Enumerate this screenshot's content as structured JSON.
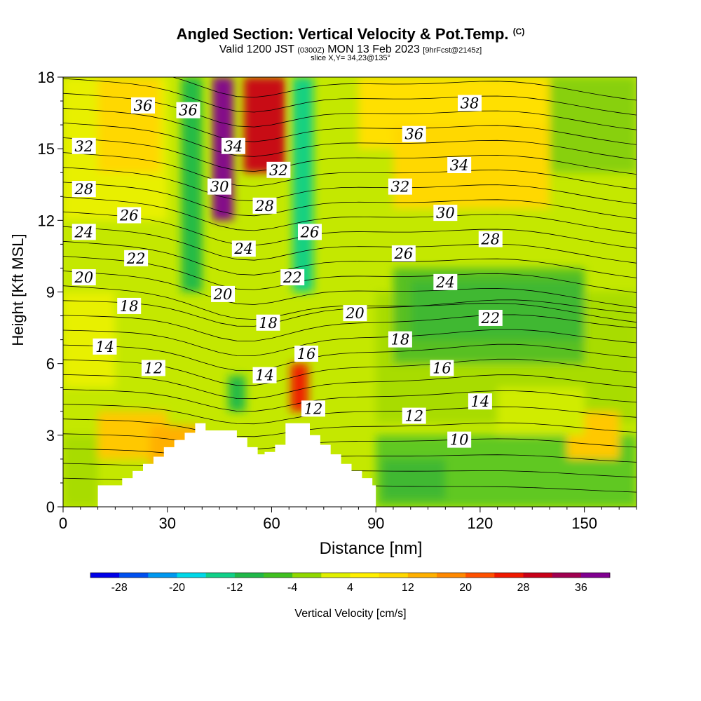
{
  "header": {
    "title": "Angled Section: Vertical Velocity & Pot.Temp.",
    "title_mark": "(C)",
    "valid_prefix": "Valid 1200 JST",
    "valid_utc": "(0300Z)",
    "valid_date": "MON 13 Feb 2023",
    "forecast": "[9hrFcst@2145z]",
    "slice": "slice X,Y= 34,23@135°"
  },
  "chart_data": {
    "type": "heatmap",
    "title": "Angled Section: Vertical Velocity & Pot.Temp.",
    "xlabel": "Distance [nm]",
    "ylabel": "Height [Kft MSL]",
    "xlim": [
      0,
      165
    ],
    "ylim": [
      0,
      18
    ],
    "x_ticks": [
      0,
      30,
      60,
      90,
      120,
      150
    ],
    "y_ticks": [
      0,
      3,
      6,
      9,
      12,
      15,
      18
    ],
    "grid": false,
    "colorbar": {
      "label": "Vertical Velocity [cm/s]",
      "position": "bottom",
      "tick_labels": [
        "-28",
        "-20",
        "-12",
        "-4",
        "4",
        "12",
        "20",
        "28",
        "36"
      ],
      "bounds": [
        -32,
        40
      ],
      "colors": [
        "#0000e8",
        "#0050f0",
        "#0098f0",
        "#00d8e8",
        "#10d088",
        "#20b848",
        "#40c020",
        "#90d800",
        "#e0f000",
        "#fff000",
        "#ffd800",
        "#ffb000",
        "#ff8800",
        "#ff5000",
        "#f01800",
        "#c80018",
        "#a00050",
        "#800090"
      ]
    },
    "vertical_velocity_features": [
      {
        "name": "updraft core",
        "x": 46,
        "y_bottom": 12,
        "y_top": 18,
        "w": 40
      },
      {
        "name": "updraft plume",
        "x": 58,
        "y_bottom": 14,
        "y_top": 18,
        "w": 30
      },
      {
        "name": "downdraft band",
        "x": 37,
        "y_bottom": 9,
        "y_top": 18,
        "w": -10
      },
      {
        "name": "downdraft band",
        "x": 69,
        "y_bottom": 9,
        "y_top": 18,
        "w": -16
      },
      {
        "name": "low-level updraft",
        "x": 68,
        "y_bottom": 4,
        "y_top": 6,
        "w": 24
      },
      {
        "name": "low-level downdraft",
        "x": 50,
        "y_bottom": 4,
        "y_top": 5.5,
        "w": -10
      }
    ],
    "terrain_profile": [
      [
        10,
        0.6
      ],
      [
        17,
        0.9
      ],
      [
        20,
        1.2
      ],
      [
        23,
        1.5
      ],
      [
        26,
        1.8
      ],
      [
        29,
        2.1
      ],
      [
        32,
        2.5
      ],
      [
        35,
        2.8
      ],
      [
        38,
        3.1
      ],
      [
        41,
        3.5
      ],
      [
        50,
        3.2
      ],
      [
        53,
        2.9
      ],
      [
        56,
        2.5
      ],
      [
        58,
        2.2
      ],
      [
        61,
        2.3
      ],
      [
        64,
        2.6
      ],
      [
        66,
        3.5
      ],
      [
        71,
        3.5
      ],
      [
        74,
        3.0
      ],
      [
        77,
        2.6
      ],
      [
        80,
        2.2
      ],
      [
        83,
        1.8
      ],
      [
        86,
        1.5
      ],
      [
        89,
        1.2
      ],
      [
        90,
        0.9
      ]
    ],
    "isentropes": [
      {
        "value": 10,
        "label_x": 114,
        "label_y": 2.8
      },
      {
        "value": 12,
        "label_x": 72,
        "label_y": 4.1
      },
      {
        "value": 12,
        "label_x": 101,
        "label_y": 3.8
      },
      {
        "value": 12,
        "label_x": 26,
        "label_y": 5.8
      },
      {
        "value": 14,
        "label_x": 58,
        "label_y": 5.5
      },
      {
        "value": 14,
        "label_x": 12,
        "label_y": 6.7
      },
      {
        "value": 14,
        "label_x": 120,
        "label_y": 4.4
      },
      {
        "value": 16,
        "label_x": 70,
        "label_y": 6.4
      },
      {
        "value": 16,
        "label_x": 109,
        "label_y": 5.8
      },
      {
        "value": 18,
        "label_x": 59,
        "label_y": 7.7
      },
      {
        "value": 18,
        "label_x": 19,
        "label_y": 8.4
      },
      {
        "value": 18,
        "label_x": 97,
        "label_y": 7.0
      },
      {
        "value": 20,
        "label_x": 6,
        "label_y": 9.6
      },
      {
        "value": 20,
        "label_x": 46,
        "label_y": 8.9
      },
      {
        "value": 20,
        "label_x": 84,
        "label_y": 8.1
      },
      {
        "value": 22,
        "label_x": 21,
        "label_y": 10.4
      },
      {
        "value": 22,
        "label_x": 66,
        "label_y": 9.6
      },
      {
        "value": 22,
        "label_x": 123,
        "label_y": 7.9
      },
      {
        "value": 24,
        "label_x": 6,
        "label_y": 11.5
      },
      {
        "value": 24,
        "label_x": 52,
        "label_y": 10.8
      },
      {
        "value": 24,
        "label_x": 110,
        "label_y": 9.4
      },
      {
        "value": 26,
        "label_x": 19,
        "label_y": 12.2
      },
      {
        "value": 26,
        "label_x": 71,
        "label_y": 11.5
      },
      {
        "value": 26,
        "label_x": 98,
        "label_y": 10.6
      },
      {
        "value": 28,
        "label_x": 6,
        "label_y": 13.3
      },
      {
        "value": 28,
        "label_x": 58,
        "label_y": 12.6
      },
      {
        "value": 28,
        "label_x": 123,
        "label_y": 11.2
      },
      {
        "value": 30,
        "label_x": 45,
        "label_y": 13.4
      },
      {
        "value": 30,
        "label_x": 110,
        "label_y": 12.3
      },
      {
        "value": 32,
        "label_x": 6,
        "label_y": 15.1
      },
      {
        "value": 32,
        "label_x": 62,
        "label_y": 14.1
      },
      {
        "value": 32,
        "label_x": 97,
        "label_y": 13.4
      },
      {
        "value": 34,
        "label_x": 49,
        "label_y": 15.1
      },
      {
        "value": 34,
        "label_x": 114,
        "label_y": 14.3
      },
      {
        "value": 36,
        "label_x": 23,
        "label_y": 16.8
      },
      {
        "value": 36,
        "label_x": 36,
        "label_y": 16.6
      },
      {
        "value": 36,
        "label_x": 101,
        "label_y": 15.6
      },
      {
        "value": 38,
        "label_x": 117,
        "label_y": 16.9
      }
    ]
  }
}
